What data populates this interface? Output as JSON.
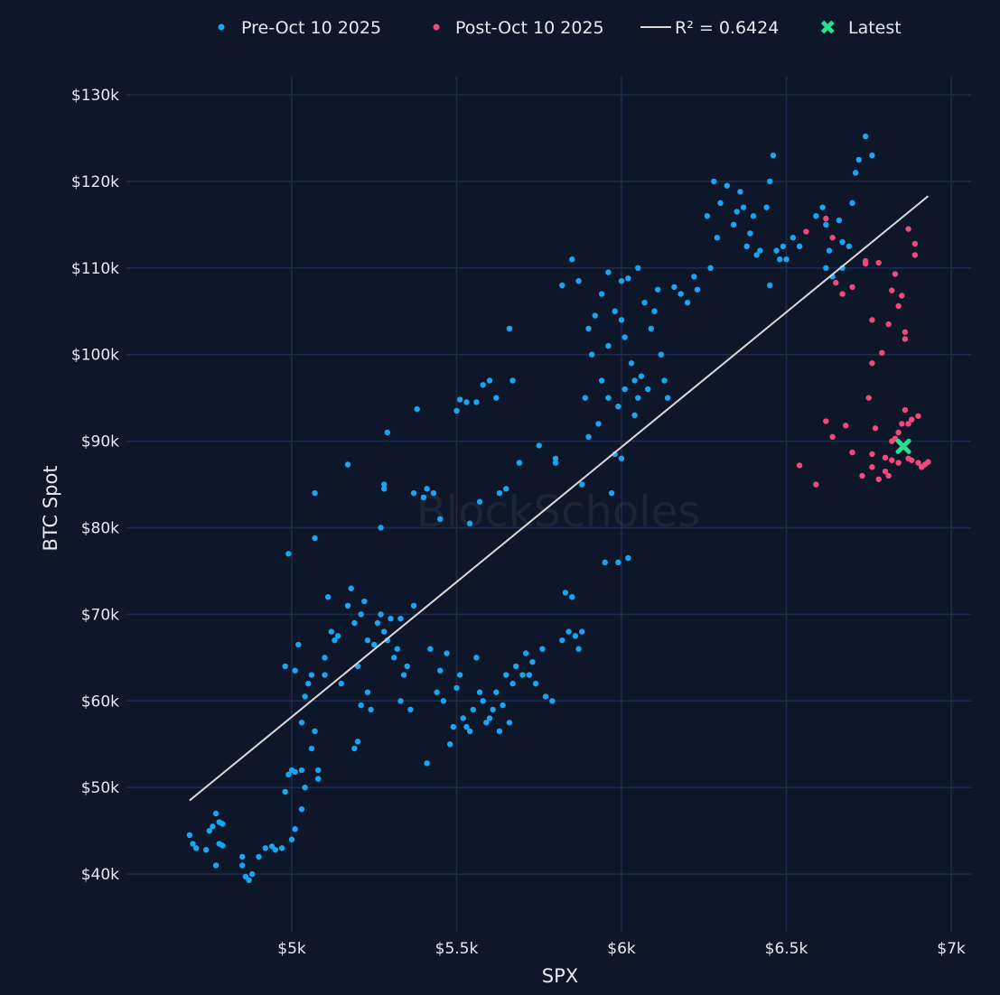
{
  "chart_data": {
    "type": "scatter",
    "title": "",
    "xlabel": "SPX",
    "ylabel": "BTC Spot",
    "xlim": [
      4620,
      7060
    ],
    "ylim": [
      38,
      132
    ],
    "x_ticks": [
      5000,
      5500,
      6000,
      6500,
      7000
    ],
    "x_tick_labels": [
      "$5k",
      "$5.5k",
      "$6k",
      "$6.5k",
      "$7k"
    ],
    "y_ticks": [
      40,
      50,
      60,
      70,
      80,
      90,
      100,
      110,
      120,
      130
    ],
    "y_tick_labels": [
      "$40k",
      "$50k",
      "$60k",
      "$70k",
      "$80k",
      "$90k",
      "$100k",
      "$110k",
      "$120k",
      "$130k"
    ],
    "y_units": "BTC price in $k",
    "grid": true,
    "legend_position": "top",
    "watermark": "BlockScholes",
    "colors": {
      "background": "#0e1729",
      "grid": "#1e2b4d",
      "pre": "#1ba4f2",
      "post": "#f0497c",
      "fit": "#d9d9d9",
      "latest": "#28e08e"
    },
    "legend": {
      "pre": "Pre-Oct 10 2025",
      "post": "Post-Oct 10 2025",
      "fit": "R² = 0.6424",
      "latest": "Latest"
    },
    "fit_line": {
      "r2": 0.6424,
      "x": [
        4690,
        6930
      ],
      "y": [
        48.5,
        118.3
      ]
    },
    "latest": {
      "x": 6855,
      "y": 89.4
    },
    "series": [
      {
        "name": "Pre-Oct 10 2025",
        "points": [
          [
            4690,
            44.5
          ],
          [
            4700,
            43.5
          ],
          [
            4710,
            43
          ],
          [
            4740,
            42.8
          ],
          [
            4750,
            45
          ],
          [
            4760,
            45.5
          ],
          [
            4770,
            47
          ],
          [
            4780,
            46
          ],
          [
            4790,
            45.8
          ],
          [
            4780,
            43.5
          ],
          [
            4790,
            43.3
          ],
          [
            4770,
            41
          ],
          [
            4850,
            42
          ],
          [
            4850,
            41
          ],
          [
            4860,
            39.7
          ],
          [
            4870,
            39.3
          ],
          [
            4880,
            40
          ],
          [
            4900,
            42
          ],
          [
            4920,
            43
          ],
          [
            4940,
            43.2
          ],
          [
            4950,
            42.8
          ],
          [
            4970,
            43
          ],
          [
            4980,
            49.5
          ],
          [
            4990,
            51.5
          ],
          [
            5000,
            52
          ],
          [
            5010,
            51.8
          ],
          [
            5000,
            44
          ],
          [
            5010,
            45.2
          ],
          [
            5030,
            47.5
          ],
          [
            5040,
            50
          ],
          [
            5030,
            52
          ],
          [
            4980,
            64
          ],
          [
            4990,
            77
          ],
          [
            5020,
            66.5
          ],
          [
            5010,
            63.5
          ],
          [
            5040,
            60.5
          ],
          [
            5030,
            57.5
          ],
          [
            5050,
            62
          ],
          [
            5060,
            63
          ],
          [
            5060,
            54.5
          ],
          [
            5070,
            56.5
          ],
          [
            5080,
            51
          ],
          [
            5080,
            52
          ],
          [
            5070,
            78.8
          ],
          [
            5070,
            84
          ],
          [
            5100,
            65
          ],
          [
            5100,
            63
          ],
          [
            5120,
            68
          ],
          [
            5110,
            72
          ],
          [
            5130,
            67
          ],
          [
            5140,
            67.5
          ],
          [
            5150,
            62
          ],
          [
            5170,
            87.3
          ],
          [
            5170,
            71
          ],
          [
            5180,
            73
          ],
          [
            5190,
            69
          ],
          [
            5200,
            64
          ],
          [
            5210,
            70
          ],
          [
            5220,
            71.5
          ],
          [
            5230,
            67
          ],
          [
            5190,
            54.5
          ],
          [
            5200,
            55.3
          ],
          [
            5210,
            59.5
          ],
          [
            5230,
            61
          ],
          [
            5240,
            59
          ],
          [
            5250,
            66.5
          ],
          [
            5260,
            69
          ],
          [
            5270,
            70
          ],
          [
            5280,
            68
          ],
          [
            5290,
            67
          ],
          [
            5300,
            69.5
          ],
          [
            5310,
            65
          ],
          [
            5330,
            60
          ],
          [
            5340,
            63
          ],
          [
            5350,
            64
          ],
          [
            5360,
            59
          ],
          [
            5370,
            71
          ],
          [
            5270,
            80
          ],
          [
            5280,
            84.5
          ],
          [
            5290,
            91
          ],
          [
            5280,
            85
          ],
          [
            5320,
            66
          ],
          [
            5330,
            69.5
          ],
          [
            5380,
            93.7
          ],
          [
            5370,
            84
          ],
          [
            5400,
            83.5
          ],
          [
            5410,
            84.5
          ],
          [
            5410,
            52.8
          ],
          [
            5420,
            66
          ],
          [
            5440,
            61
          ],
          [
            5450,
            63.5
          ],
          [
            5460,
            60
          ],
          [
            5470,
            65.5
          ],
          [
            5480,
            55
          ],
          [
            5490,
            57
          ],
          [
            5500,
            61.5
          ],
          [
            5510,
            63
          ],
          [
            5520,
            58
          ],
          [
            5530,
            57
          ],
          [
            5540,
            56.5
          ],
          [
            5550,
            59
          ],
          [
            5560,
            65
          ],
          [
            5570,
            61
          ],
          [
            5580,
            60
          ],
          [
            5590,
            57.5
          ],
          [
            5600,
            58
          ],
          [
            5610,
            59
          ],
          [
            5620,
            61
          ],
          [
            5630,
            56.5
          ],
          [
            5640,
            59.5
          ],
          [
            5650,
            63
          ],
          [
            5660,
            57.5
          ],
          [
            5670,
            62
          ],
          [
            5680,
            64
          ],
          [
            5430,
            84
          ],
          [
            5450,
            81
          ],
          [
            5500,
            93.5
          ],
          [
            5510,
            94.8
          ],
          [
            5530,
            94.5
          ],
          [
            5540,
            80.5
          ],
          [
            5560,
            94.5
          ],
          [
            5570,
            83
          ],
          [
            5580,
            96.5
          ],
          [
            5600,
            97
          ],
          [
            5620,
            95
          ],
          [
            5630,
            84
          ],
          [
            5650,
            84.5
          ],
          [
            5660,
            103
          ],
          [
            5670,
            97
          ],
          [
            5690,
            87.5
          ],
          [
            5700,
            63
          ],
          [
            5710,
            65.5
          ],
          [
            5720,
            63
          ],
          [
            5730,
            64.5
          ],
          [
            5740,
            62
          ],
          [
            5750,
            89.5
          ],
          [
            5760,
            66
          ],
          [
            5770,
            60.5
          ],
          [
            5790,
            60
          ],
          [
            5800,
            87.5
          ],
          [
            5800,
            88
          ],
          [
            5820,
            67
          ],
          [
            5830,
            72.5
          ],
          [
            5840,
            68
          ],
          [
            5850,
            72
          ],
          [
            5860,
            67.5
          ],
          [
            5870,
            66
          ],
          [
            5880,
            68
          ],
          [
            5820,
            108
          ],
          [
            5850,
            111
          ],
          [
            5870,
            108.5
          ],
          [
            5880,
            85
          ],
          [
            5900,
            90.5
          ],
          [
            5890,
            95
          ],
          [
            5900,
            103
          ],
          [
            5910,
            100
          ],
          [
            5920,
            104.5
          ],
          [
            5930,
            92
          ],
          [
            5940,
            107
          ],
          [
            5940,
            97
          ],
          [
            5950,
            76
          ],
          [
            5960,
            95
          ],
          [
            5960,
            109.5
          ],
          [
            5970,
            84
          ],
          [
            5980,
            88.5
          ],
          [
            5990,
            76
          ],
          [
            6000,
            88
          ],
          [
            6000,
            104
          ],
          [
            6010,
            96
          ],
          [
            6020,
            76.5
          ],
          [
            6020,
            108.8
          ],
          [
            6030,
            99
          ],
          [
            6040,
            97
          ],
          [
            6050,
            110
          ],
          [
            6050,
            95
          ],
          [
            6060,
            97.5
          ],
          [
            6070,
            106
          ],
          [
            6080,
            96
          ],
          [
            6090,
            103
          ],
          [
            6100,
            105
          ],
          [
            6110,
            107.5
          ],
          [
            6120,
            100
          ],
          [
            6130,
            97
          ],
          [
            6140,
            95
          ],
          [
            6160,
            107.8
          ],
          [
            6180,
            107
          ],
          [
            6200,
            106
          ],
          [
            6220,
            109
          ],
          [
            6230,
            107.5
          ],
          [
            6260,
            116
          ],
          [
            6270,
            110
          ],
          [
            6280,
            120
          ],
          [
            6290,
            113.5
          ],
          [
            6300,
            117.5
          ],
          [
            6320,
            119.5
          ],
          [
            6340,
            115
          ],
          [
            6350,
            116.5
          ],
          [
            6360,
            118.8
          ],
          [
            6370,
            117
          ],
          [
            6380,
            112.5
          ],
          [
            6390,
            114
          ],
          [
            6400,
            116
          ],
          [
            6410,
            111.5
          ],
          [
            6420,
            112
          ],
          [
            6440,
            117
          ],
          [
            6450,
            120
          ],
          [
            6460,
            123
          ],
          [
            6450,
            108
          ],
          [
            6470,
            112
          ],
          [
            6480,
            111
          ],
          [
            6490,
            112.5
          ],
          [
            6500,
            111
          ],
          [
            6520,
            113.5
          ],
          [
            6540,
            112.5
          ],
          [
            6590,
            116
          ],
          [
            6610,
            117
          ],
          [
            6620,
            115
          ],
          [
            6630,
            112
          ],
          [
            6640,
            109
          ],
          [
            6660,
            115.5
          ],
          [
            6670,
            113
          ],
          [
            6690,
            112.5
          ],
          [
            6700,
            117.5
          ],
          [
            6710,
            121
          ],
          [
            6720,
            122.5
          ],
          [
            6740,
            125.2
          ],
          [
            6760,
            123
          ],
          [
            6670,
            110
          ],
          [
            6620,
            110
          ],
          [
            6000,
            108.5
          ],
          [
            5980,
            105
          ],
          [
            6010,
            102
          ],
          [
            6040,
            93
          ],
          [
            5960,
            101
          ],
          [
            5990,
            94
          ]
        ]
      },
      {
        "name": "Post-Oct 10 2025",
        "points": [
          [
            6560,
            114.2
          ],
          [
            6620,
            115.7
          ],
          [
            6640,
            113.5
          ],
          [
            6650,
            108.3
          ],
          [
            6670,
            107
          ],
          [
            6700,
            107.8
          ],
          [
            6740,
            110.8
          ],
          [
            6740,
            110.5
          ],
          [
            6780,
            110.6
          ],
          [
            6820,
            107.4
          ],
          [
            6830,
            109.3
          ],
          [
            6850,
            106.8
          ],
          [
            6840,
            105.6
          ],
          [
            6810,
            103.5
          ],
          [
            6860,
            102.6
          ],
          [
            6860,
            101.8
          ],
          [
            6760,
            99
          ],
          [
            6760,
            104
          ],
          [
            6790,
            100.2
          ],
          [
            6870,
            114.5
          ],
          [
            6890,
            112.8
          ],
          [
            6890,
            111.5
          ],
          [
            6750,
            95
          ],
          [
            6770,
            91.5
          ],
          [
            6760,
            88.5
          ],
          [
            6620,
            92.3
          ],
          [
            6640,
            90.5
          ],
          [
            6680,
            91.8
          ],
          [
            6540,
            87.2
          ],
          [
            6590,
            85
          ],
          [
            6700,
            88.7
          ],
          [
            6730,
            86
          ],
          [
            6760,
            87
          ],
          [
            6780,
            85.6
          ],
          [
            6800,
            86.5
          ],
          [
            6810,
            86
          ],
          [
            6820,
            87.8
          ],
          [
            6820,
            90
          ],
          [
            6830,
            90.3
          ],
          [
            6840,
            91
          ],
          [
            6850,
            92
          ],
          [
            6860,
            93.6
          ],
          [
            6870,
            92
          ],
          [
            6880,
            92.5
          ],
          [
            6900,
            92.9
          ],
          [
            6870,
            88
          ],
          [
            6880,
            87.8
          ],
          [
            6900,
            87.5
          ],
          [
            6920,
            87.3
          ],
          [
            6930,
            87.6
          ],
          [
            6910,
            87
          ],
          [
            6800,
            88.1
          ],
          [
            6840,
            87.5
          ]
        ]
      }
    ]
  }
}
